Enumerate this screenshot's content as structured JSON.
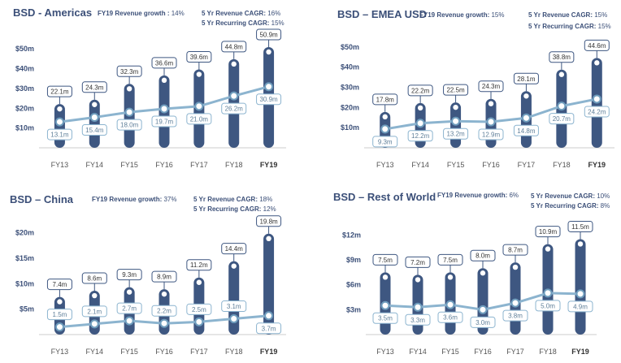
{
  "colors": {
    "bar": "#3e5781",
    "line": "#8cb4cf",
    "lineDot": "#6f9dbd",
    "title": "#3b4f78",
    "axis": "#cccccc",
    "tick": "#555555"
  },
  "labels": {
    "growth": "Revenue growth",
    "cagr": "5 Yr Revenue CAGR",
    "recurring": "5 Yr Recurring CAGR"
  },
  "chart_data": [
    {
      "type": "bar",
      "title": "BSD - Americas",
      "categories": [
        "FY13",
        "FY14",
        "FY15",
        "FY16",
        "FY17",
        "FY18",
        "FY19"
      ],
      "bold_category": "FY19",
      "yticks": [
        "$10m",
        "$20m",
        "$30m",
        "$40m",
        "$50m"
      ],
      "ytick_values": [
        10,
        20,
        30,
        40,
        50
      ],
      "ylim": [
        0,
        55
      ],
      "series": [
        {
          "values": [
            22.1,
            24.3,
            32.3,
            36.6,
            39.6,
            44.8,
            50.9
          ],
          "labels": [
            "22.1m",
            "24.3m",
            "32.3m",
            "36.6m",
            "39.6m",
            "44.8m",
            "50.9m"
          ]
        },
        {
          "values": [
            13.1,
            15.4,
            18.0,
            19.7,
            21.0,
            26.2,
            30.9
          ],
          "labels": [
            "13.1m",
            "15.4m",
            "18.0m",
            "19.7m",
            "21.0m",
            "26.2m",
            "30.9m"
          ]
        }
      ],
      "stats": {
        "growth_fy": "FY19",
        "growth": "14%",
        "cagr": "16%",
        "recurring": "15%"
      }
    },
    {
      "type": "bar",
      "title": "BSD – EMEA USD",
      "categories": [
        "FY13",
        "FY14",
        "FY15",
        "FY16",
        "FY17",
        "FY18",
        "FY19"
      ],
      "bold_category": "FY19",
      "yticks": [
        "$10m",
        "$20m",
        "$30m",
        "$40m",
        "$50m"
      ],
      "ytick_values": [
        10,
        20,
        30,
        40,
        50
      ],
      "ylim": [
        0,
        54
      ],
      "series": [
        {
          "values": [
            17.8,
            22.2,
            22.5,
            24.3,
            28.1,
            38.8,
            44.6
          ],
          "labels": [
            "17.8m",
            "22.2m",
            "22.5m",
            "24.3m",
            "28.1m",
            "38.8m",
            "44.6m"
          ]
        },
        {
          "values": [
            9.3,
            12.2,
            13.2,
            12.9,
            14.8,
            20.7,
            24.2
          ],
          "labels": [
            "9.3m",
            "12.2m",
            "13.2m",
            "12.9m",
            "14.8m",
            "20.7m",
            "24.2m"
          ]
        }
      ],
      "stats": {
        "growth_fy": "FY19",
        "growth": "15%",
        "cagr": "15%",
        "recurring": "15%"
      }
    },
    {
      "type": "bar",
      "title": "BSD – China",
      "categories": [
        "FY13",
        "FY14",
        "FY15",
        "FY16",
        "FY17",
        "FY18",
        "FY19"
      ],
      "bold_category": "FY19",
      "yticks": [
        "$5m",
        "$10m",
        "$15m",
        "$20m"
      ],
      "ytick_values": [
        5,
        10,
        15,
        20
      ],
      "ylim": [
        0,
        22
      ],
      "series": [
        {
          "values": [
            7.4,
            8.6,
            9.3,
            8.9,
            11.2,
            14.4,
            19.8
          ],
          "labels": [
            "7.4m",
            "8.6m",
            "9.3m",
            "8.9m",
            "11.2m",
            "14.4m",
            "19.8m"
          ]
        },
        {
          "values": [
            1.5,
            2.1,
            2.7,
            2.2,
            2.5,
            3.1,
            3.7
          ],
          "labels": [
            "1.5m",
            "2.1m",
            "2.7m",
            "2.2m",
            "2.5m",
            "3.1m",
            "3.7m"
          ]
        }
      ],
      "stats": {
        "growth_fy": "FY19",
        "growth": "37%",
        "cagr": "18%",
        "recurring": "12%"
      }
    },
    {
      "type": "bar",
      "title": "BSD – Rest of World",
      "categories": [
        "FY13",
        "FY14",
        "FY15",
        "FY16",
        "FY17",
        "FY18",
        "FY19"
      ],
      "bold_category": "FY19",
      "yticks": [
        "$3m",
        "$6m",
        "$9m",
        "$12m"
      ],
      "ytick_values": [
        3,
        6,
        9,
        12
      ],
      "ylim": [
        0,
        13.5
      ],
      "series": [
        {
          "values": [
            7.5,
            7.2,
            7.5,
            8.0,
            8.7,
            10.9,
            11.5
          ],
          "labels": [
            "7.5m",
            "7.2m",
            "7.5m",
            "8.0m",
            "8.7m",
            "10.9m",
            "11.5m"
          ]
        },
        {
          "values": [
            3.5,
            3.3,
            3.6,
            3.0,
            3.8,
            5.0,
            4.9
          ],
          "labels": [
            "3.5m",
            "3.3m",
            "3.6m",
            "3.0m",
            "3.8m",
            "5.0m",
            "4.9m"
          ]
        }
      ],
      "stats": {
        "growth_fy": "FY19",
        "growth": "6%",
        "cagr": "10%",
        "recurring": "8%"
      }
    }
  ]
}
